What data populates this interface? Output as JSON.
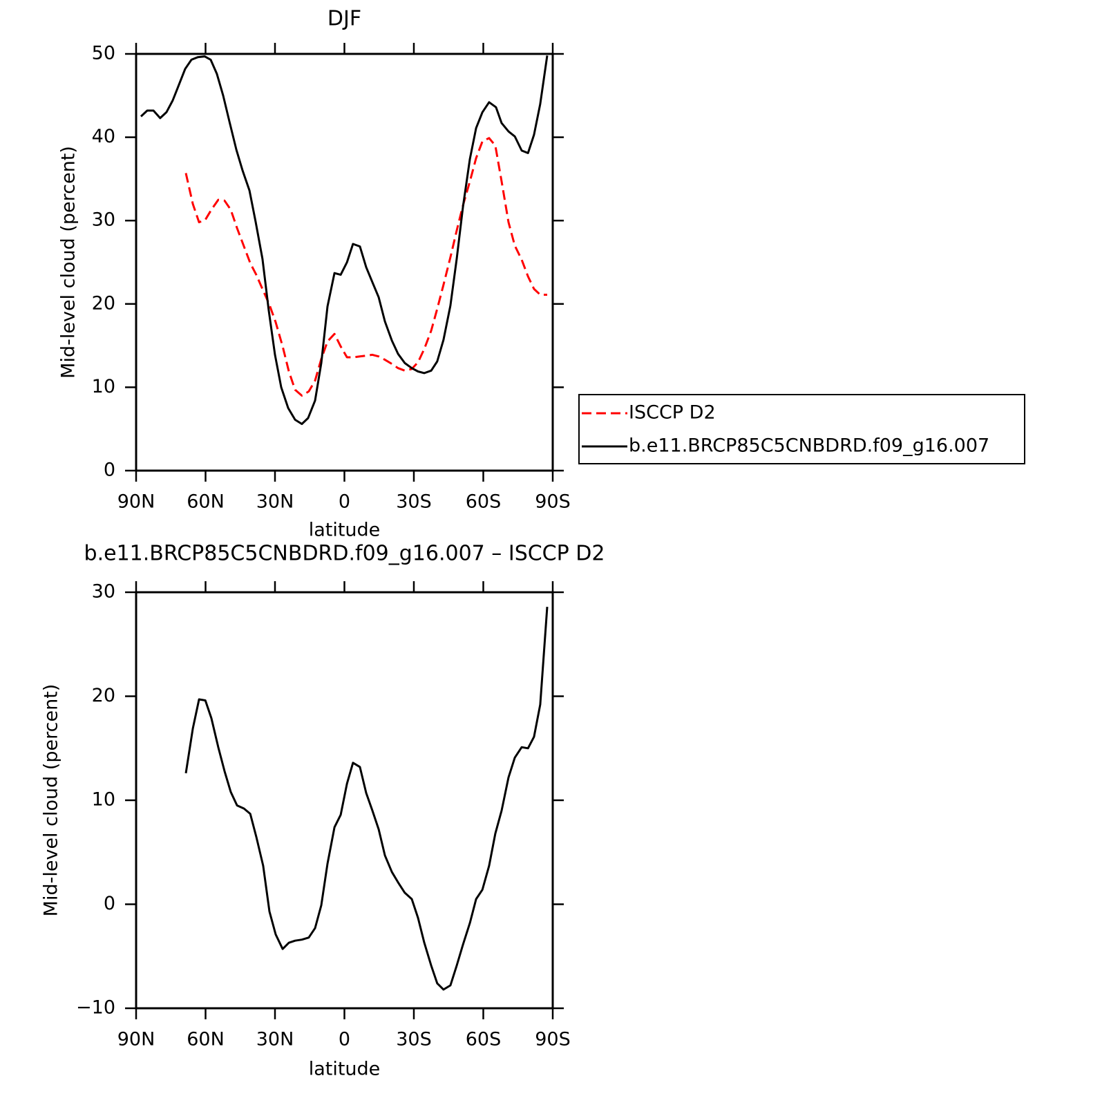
{
  "chart_data": [
    {
      "type": "line",
      "title": "DJF",
      "xlabel": "latitude",
      "ylabel": "Mid-level cloud (percent)",
      "xlim": [
        90,
        -90
      ],
      "xticks": [
        {
          "value": 90,
          "label": "90N"
        },
        {
          "value": 60,
          "label": "60N"
        },
        {
          "value": 30,
          "label": "30N"
        },
        0,
        {
          "value": -30,
          "label": "30S"
        },
        {
          "value": -60,
          "label": "60S"
        },
        {
          "value": -90,
          "label": "90S"
        }
      ],
      "ylim": [
        0,
        50
      ],
      "yticks": [
        0,
        10,
        20,
        30,
        40,
        50
      ],
      "legend": "right",
      "series": [
        {
          "name": "ISCCP D2",
          "color": "#ff0000",
          "linestyle": "dashed",
          "x": [
            68.5,
            65.5,
            62.8,
            60.1,
            57.5,
            54.5,
            51.8,
            49.1,
            46.4,
            43.4,
            40.7,
            38.1,
            35.1,
            32.4,
            29.7,
            26.7,
            24.0,
            21.3,
            18.4,
            15.4,
            12.7,
            10.0,
            7.3,
            4.3,
            1.6,
            -1.1,
            -3.7,
            -6.7,
            -9.4,
            -12.1,
            -14.8,
            -17.5,
            -20.5,
            -23.2,
            -26.1,
            -29.1,
            -31.8,
            -34.5,
            -37.5,
            -40.1,
            -42.8,
            -45.8,
            -48.5,
            -51.2,
            -54.2,
            -56.9,
            -59.6,
            -62.5,
            -65.2,
            -67.9,
            -70.9,
            -73.6,
            -76.6,
            -79.3,
            -81.9,
            -84.6,
            -87.6
          ],
          "values": [
            35.7,
            32.0,
            29.8,
            30.1,
            31.3,
            32.5,
            32.4,
            31.3,
            29.1,
            26.9,
            24.9,
            23.5,
            21.6,
            19.9,
            17.8,
            14.9,
            11.9,
            9.7,
            9.0,
            9.5,
            10.8,
            13.4,
            15.5,
            16.4,
            14.9,
            13.6,
            13.6,
            13.7,
            13.8,
            13.9,
            13.7,
            13.3,
            12.8,
            12.3,
            12.0,
            12.2,
            13.0,
            14.6,
            16.8,
            19.4,
            22.3,
            25.6,
            28.8,
            31.8,
            34.7,
            37.5,
            39.5,
            39.9,
            39.0,
            34.7,
            29.8,
            27.0,
            25.3,
            23.3,
            21.8,
            21.1,
            21.1
          ]
        },
        {
          "name": "b.e11.BRCP85C5CNBDRD.f09_g16.007",
          "color": "#000000",
          "linestyle": "solid",
          "x": [
            87.9,
            85.2,
            82.5,
            79.6,
            76.9,
            74.2,
            71.5,
            68.8,
            66.1,
            63.4,
            60.4,
            57.8,
            55.1,
            52.4,
            49.7,
            46.7,
            44.0,
            41.0,
            38.4,
            35.4,
            32.7,
            30.0,
            27.3,
            24.3,
            21.3,
            18.4,
            15.7,
            12.7,
            10.0,
            7.3,
            4.3,
            1.6,
            -1.1,
            -3.7,
            -6.7,
            -9.4,
            -12.1,
            -14.8,
            -17.5,
            -20.5,
            -23.2,
            -26.1,
            -29.1,
            -31.8,
            -34.5,
            -37.5,
            -40.1,
            -42.8,
            -45.8,
            -48.5,
            -51.2,
            -54.2,
            -56.9,
            -59.6,
            -62.5,
            -65.5,
            -67.9,
            -70.9,
            -73.6,
            -76.6,
            -79.3,
            -81.9,
            -84.6,
            -87.6
          ],
          "values": [
            42.5,
            43.2,
            43.2,
            42.3,
            43.0,
            44.4,
            46.3,
            48.2,
            49.3,
            49.6,
            49.7,
            49.3,
            47.6,
            45.0,
            41.9,
            38.5,
            36.0,
            33.6,
            29.9,
            25.4,
            19.2,
            13.9,
            10.0,
            7.5,
            6.1,
            5.6,
            6.3,
            8.4,
            12.9,
            19.7,
            23.7,
            23.5,
            25.0,
            27.2,
            26.9,
            24.4,
            22.6,
            20.8,
            17.9,
            15.6,
            14.0,
            12.9,
            12.3,
            11.9,
            11.7,
            12.0,
            13.1,
            15.7,
            19.8,
            25.4,
            31.6,
            37.4,
            41.1,
            43.0,
            44.2,
            43.6,
            41.7,
            40.7,
            40.1,
            38.4,
            38.1,
            40.3,
            44.0,
            49.8
          ]
        }
      ]
    },
    {
      "type": "line",
      "title": "b.e11.BRCP85C5CNBDRD.f09_g16.007 – ISCCP D2",
      "xlabel": "latitude",
      "ylabel": "Mid-level cloud (percent)",
      "xlim": [
        90,
        -90
      ],
      "xticks": [
        {
          "value": 90,
          "label": "90N"
        },
        {
          "value": 60,
          "label": "60N"
        },
        {
          "value": 30,
          "label": "30N"
        },
        0,
        {
          "value": -30,
          "label": "30S"
        },
        {
          "value": -60,
          "label": "60S"
        },
        {
          "value": -90,
          "label": "90S"
        }
      ],
      "ylim": [
        -10,
        30
      ],
      "yticks": [
        {
          "value": -10,
          "label": "−10"
        },
        0,
        10,
        20,
        30
      ],
      "series": [
        {
          "color": "#000000",
          "linestyle": "solid",
          "x": [
            68.5,
            65.5,
            62.8,
            60.1,
            57.5,
            54.5,
            51.8,
            49.1,
            46.4,
            43.4,
            40.7,
            38.1,
            35.1,
            32.4,
            29.7,
            26.7,
            24.0,
            21.3,
            18.4,
            15.4,
            12.7,
            10.0,
            7.3,
            4.3,
            1.6,
            -1.1,
            -3.7,
            -6.7,
            -9.4,
            -12.1,
            -14.8,
            -17.5,
            -20.5,
            -23.2,
            -26.1,
            -29.1,
            -31.8,
            -34.5,
            -37.5,
            -40.1,
            -42.8,
            -45.8,
            -48.5,
            -51.2,
            -54.2,
            -56.9,
            -59.6,
            -62.5,
            -65.2,
            -67.9,
            -70.9,
            -73.6,
            -76.6,
            -79.3,
            -81.9,
            -84.6,
            -87.6
          ],
          "values": [
            12.6,
            16.9,
            19.7,
            19.6,
            17.9,
            15.1,
            12.8,
            10.8,
            9.5,
            9.2,
            8.7,
            6.5,
            3.7,
            -0.7,
            -2.9,
            -4.3,
            -3.7,
            -3.5,
            -3.4,
            -3.2,
            -2.3,
            -0.1,
            3.9,
            7.4,
            8.6,
            11.6,
            13.6,
            13.2,
            10.7,
            9.0,
            7.2,
            4.7,
            3.1,
            2.1,
            1.1,
            0.5,
            -1.3,
            -3.7,
            -5.9,
            -7.6,
            -8.2,
            -7.8,
            -5.9,
            -3.9,
            -1.8,
            0.5,
            1.4,
            3.7,
            6.8,
            9.0,
            12.2,
            14.1,
            15.1,
            15.0,
            16.1,
            19.2,
            28.6
          ]
        }
      ]
    }
  ]
}
